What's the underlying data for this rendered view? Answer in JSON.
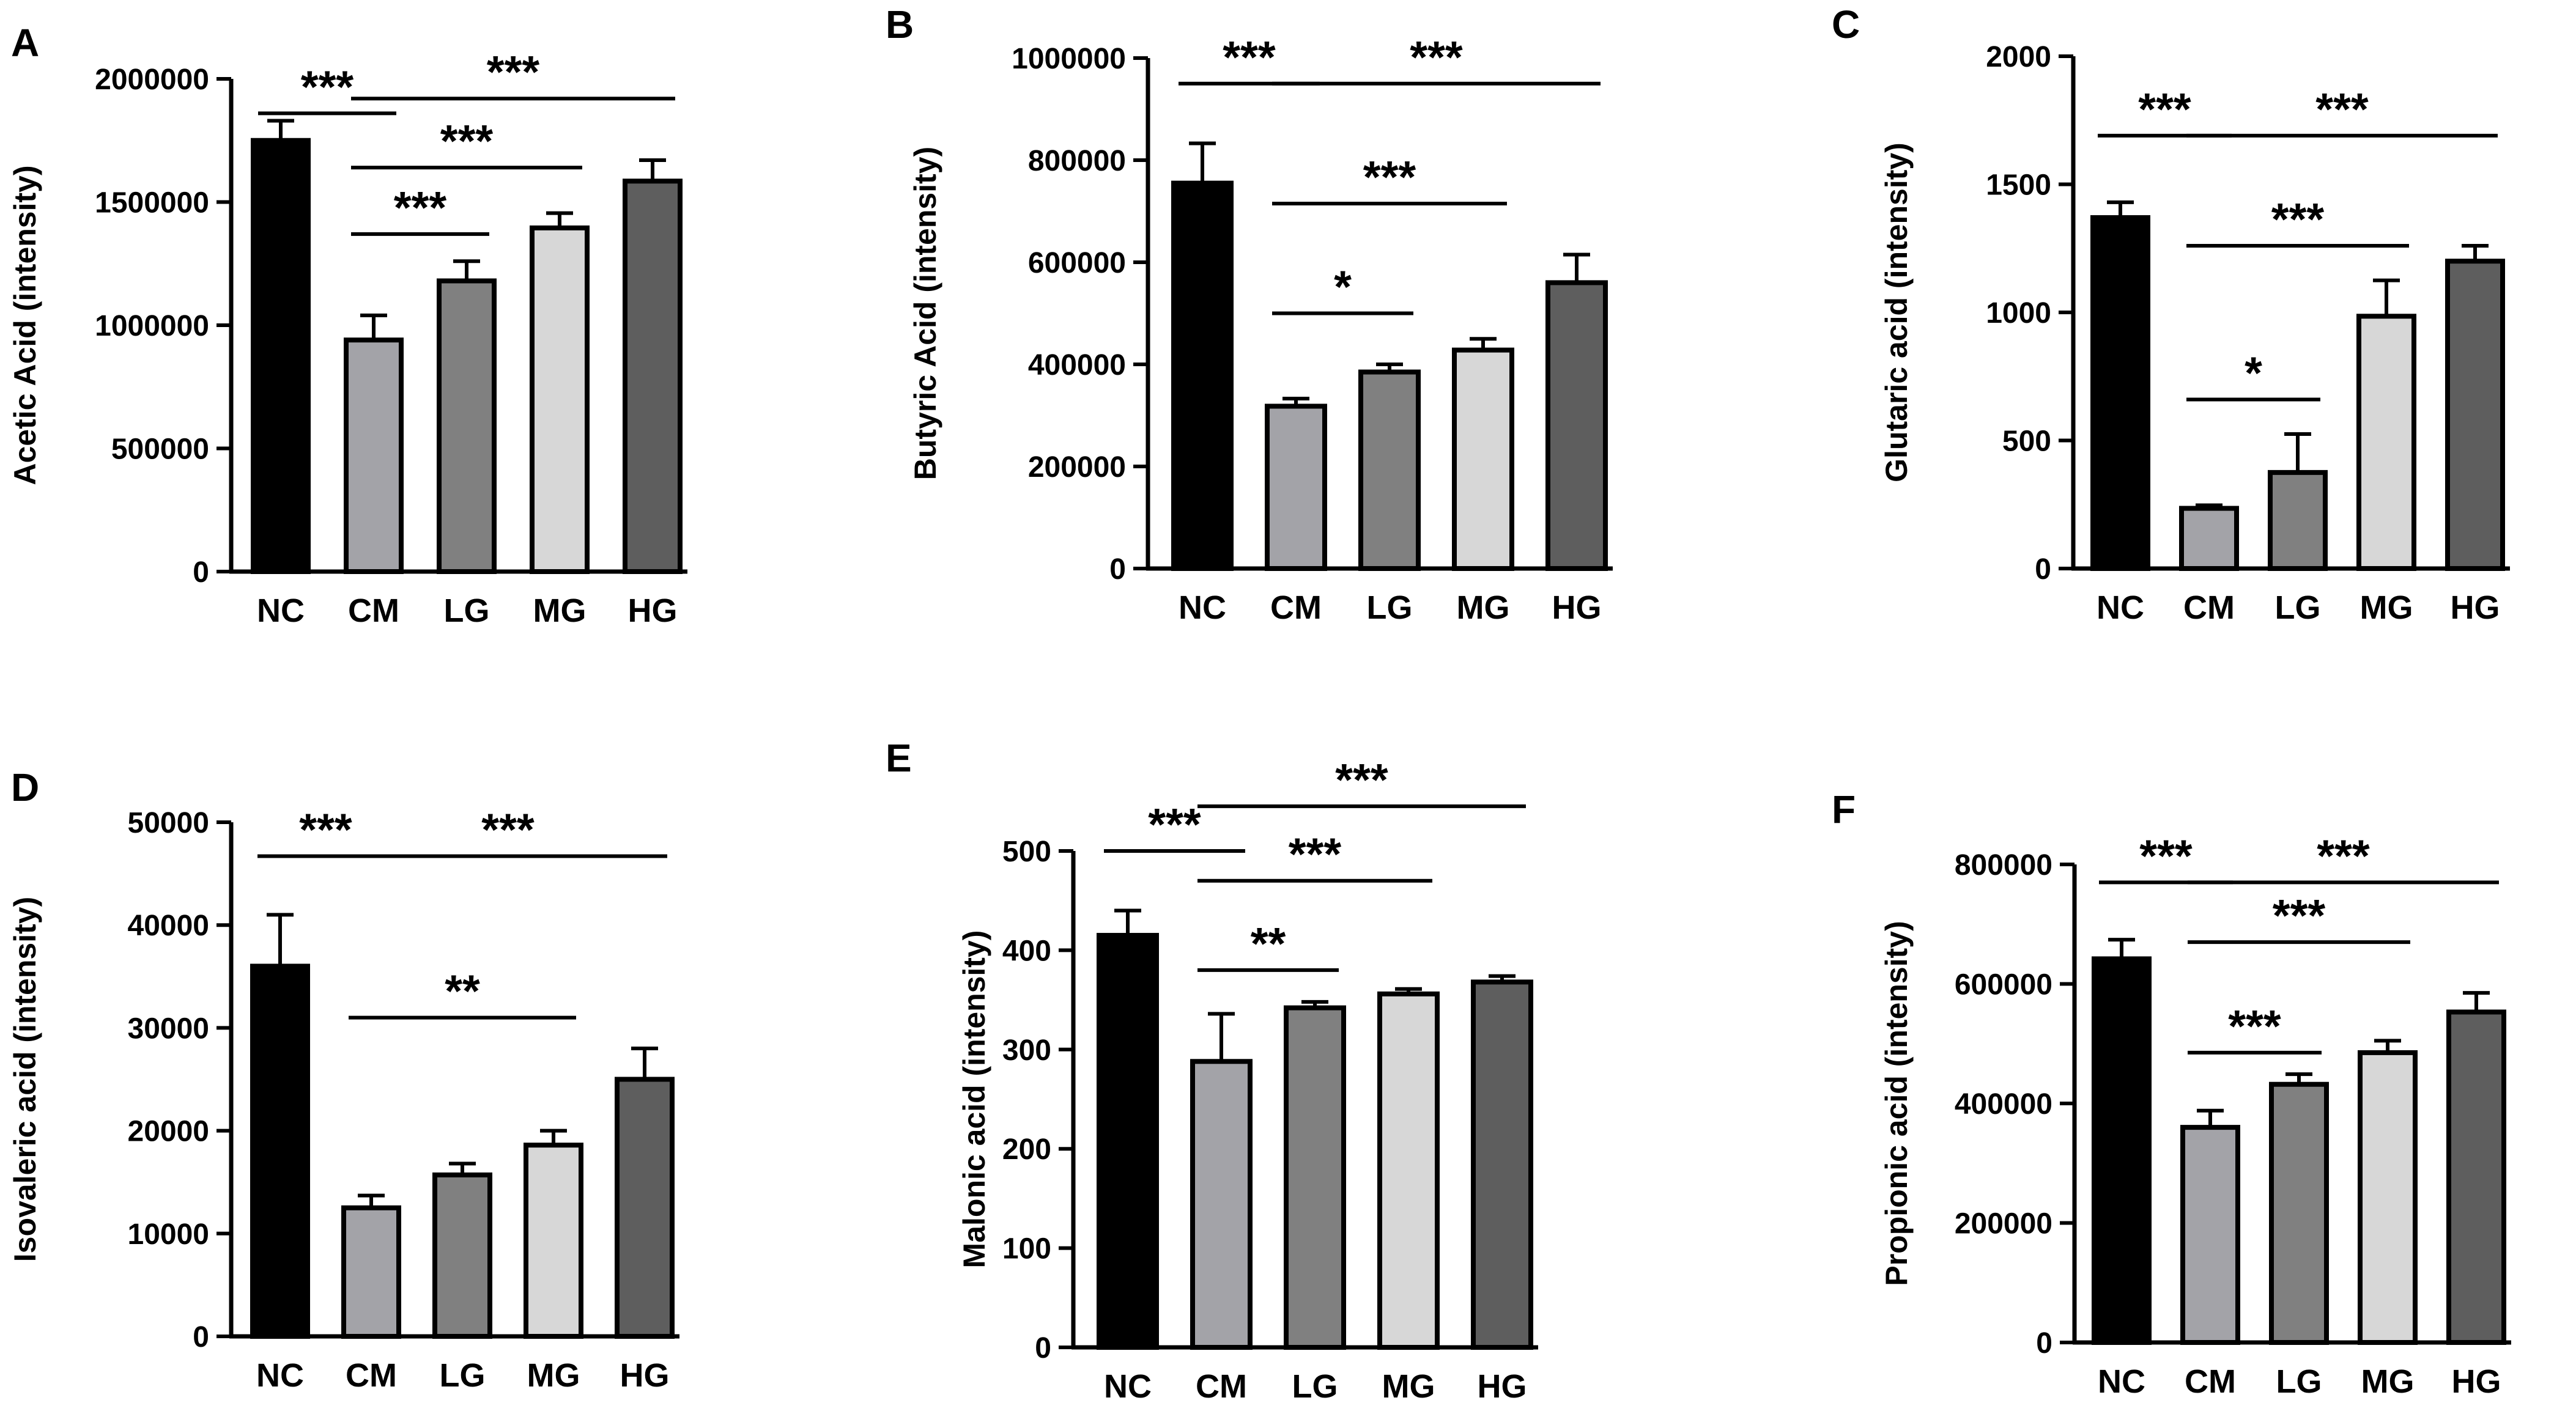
{
  "figure": {
    "colors": {
      "NC": "#000000",
      "CM": "#a3a3a8",
      "LG": "#808080",
      "MG": "#d7d7d7",
      "HG": "#5e5e5e"
    }
  },
  "chart_data": [
    {
      "panel": "A",
      "type": "bar",
      "ylabel": "Acetic Acid (intensity)",
      "categories": [
        "NC",
        "CM",
        "LG",
        "MG",
        "HG"
      ],
      "values": [
        1750000,
        940000,
        1180000,
        1395000,
        1585000
      ],
      "errors": [
        80000,
        100000,
        80000,
        60000,
        85000
      ],
      "ylim": [
        0,
        2000000
      ],
      "yticks": [
        0,
        500000,
        1000000,
        1500000,
        2000000
      ],
      "yticklabels": [
        "0",
        "500000",
        "1000000",
        "1500000",
        "2000000"
      ],
      "significance": [
        {
          "from": "NC",
          "to": "CM",
          "label": "***",
          "y": 1860000
        },
        {
          "from": "CM",
          "to": "HG",
          "label": "***",
          "y": 1920000
        },
        {
          "from": "CM",
          "to": "MG",
          "label": "***",
          "y": 1640000
        },
        {
          "from": "CM",
          "to": "LG",
          "label": "***",
          "y": 1370000
        }
      ]
    },
    {
      "panel": "B",
      "type": "bar",
      "ylabel": "Butyric Acid (intensity)",
      "categories": [
        "NC",
        "CM",
        "LG",
        "MG",
        "HG"
      ],
      "values": [
        755000,
        318000,
        385000,
        428000,
        560000
      ],
      "errors": [
        78000,
        15000,
        15000,
        22000,
        55000
      ],
      "ylim": [
        0,
        1000000
      ],
      "yticks": [
        0,
        200000,
        400000,
        600000,
        800000,
        1000000
      ],
      "yticklabels": [
        "0",
        "200000",
        "400000",
        "600000",
        "800000",
        "1000000"
      ],
      "significance": [
        {
          "from": "NC",
          "to": "CM",
          "label": "***",
          "y": 950000
        },
        {
          "from": "CM",
          "to": "HG",
          "label": "***",
          "y": 950000
        },
        {
          "from": "CM",
          "to": "MG",
          "label": "***",
          "y": 715000
        },
        {
          "from": "CM",
          "to": "LG",
          "label": "*",
          "y": 500000
        }
      ]
    },
    {
      "panel": "C",
      "type": "bar",
      "ylabel": "Glutaric acid (intensity)",
      "categories": [
        "NC",
        "CM",
        "LG",
        "MG",
        "HG"
      ],
      "values": [
        1370,
        235,
        375,
        985,
        1200
      ],
      "errors": [
        60,
        12,
        150,
        140,
        60
      ],
      "ylim": [
        0,
        2000
      ],
      "yticks": [
        0,
        500,
        1000,
        1500,
        2000
      ],
      "yticklabels": [
        "0",
        "500",
        "1000",
        "1500",
        "2000"
      ],
      "significance": [
        {
          "from": "NC",
          "to": "CM",
          "label": "***",
          "y": 1690
        },
        {
          "from": "CM",
          "to": "HG",
          "label": "***",
          "y": 1690
        },
        {
          "from": "CM",
          "to": "MG",
          "label": "***",
          "y": 1260
        },
        {
          "from": "CM",
          "to": "LG",
          "label": "*",
          "y": 660
        }
      ]
    },
    {
      "panel": "D",
      "type": "bar",
      "ylabel": "Isovaleric acid (intensity)",
      "categories": [
        "NC",
        "CM",
        "LG",
        "MG",
        "HG"
      ],
      "values": [
        36000,
        12500,
        15700,
        18600,
        25000
      ],
      "errors": [
        5000,
        1200,
        1100,
        1400,
        3000
      ],
      "ylim": [
        0,
        50000
      ],
      "yticks": [
        0,
        10000,
        20000,
        30000,
        40000,
        50000
      ],
      "yticklabels": [
        "0",
        "10000",
        "20000",
        "30000",
        "40000",
        "50000"
      ],
      "significance": [
        {
          "from": "NC",
          "to": "CM",
          "label": "***",
          "y": 46700
        },
        {
          "from": "CM",
          "to": "HG",
          "label": "***",
          "y": 46700
        },
        {
          "from": "CM",
          "to": "MG",
          "label": "**",
          "y": 31000
        }
      ]
    },
    {
      "panel": "E",
      "type": "bar",
      "ylabel": "Malonic acid (intensity)",
      "categories": [
        "NC",
        "CM",
        "LG",
        "MG",
        "HG"
      ],
      "values": [
        415,
        288,
        342,
        356,
        368
      ],
      "errors": [
        25,
        48,
        6,
        5,
        6
      ],
      "ylim": [
        0,
        500
      ],
      "yticks": [
        0,
        100,
        200,
        300,
        400,
        500
      ],
      "yticklabels": [
        "0",
        "100",
        "200",
        "300",
        "400",
        "500"
      ],
      "significance": [
        {
          "from": "NC",
          "to": "CM",
          "label": "***",
          "y": 500
        },
        {
          "from": "CM",
          "to": "HG",
          "label": "***",
          "y": 545
        },
        {
          "from": "CM",
          "to": "MG",
          "label": "***",
          "y": 470
        },
        {
          "from": "CM",
          "to": "LG",
          "label": "**",
          "y": 380
        }
      ]
    },
    {
      "panel": "F",
      "type": "bar",
      "ylabel": "Propionic acid (intensity)",
      "categories": [
        "NC",
        "CM",
        "LG",
        "MG",
        "HG"
      ],
      "values": [
        642000,
        360000,
        432000,
        485000,
        553000
      ],
      "errors": [
        32000,
        28000,
        17000,
        20000,
        32000
      ],
      "ylim": [
        0,
        800000
      ],
      "yticks": [
        0,
        200000,
        400000,
        600000,
        800000
      ],
      "yticklabels": [
        "0",
        "200000",
        "400000",
        "600000",
        "800000"
      ],
      "significance": [
        {
          "from": "NC",
          "to": "CM",
          "label": "***",
          "y": 770000
        },
        {
          "from": "CM",
          "to": "HG",
          "label": "***",
          "y": 770000
        },
        {
          "from": "CM",
          "to": "MG",
          "label": "***",
          "y": 670000
        },
        {
          "from": "CM",
          "to": "LG",
          "label": "***",
          "y": 485000
        }
      ]
    }
  ]
}
